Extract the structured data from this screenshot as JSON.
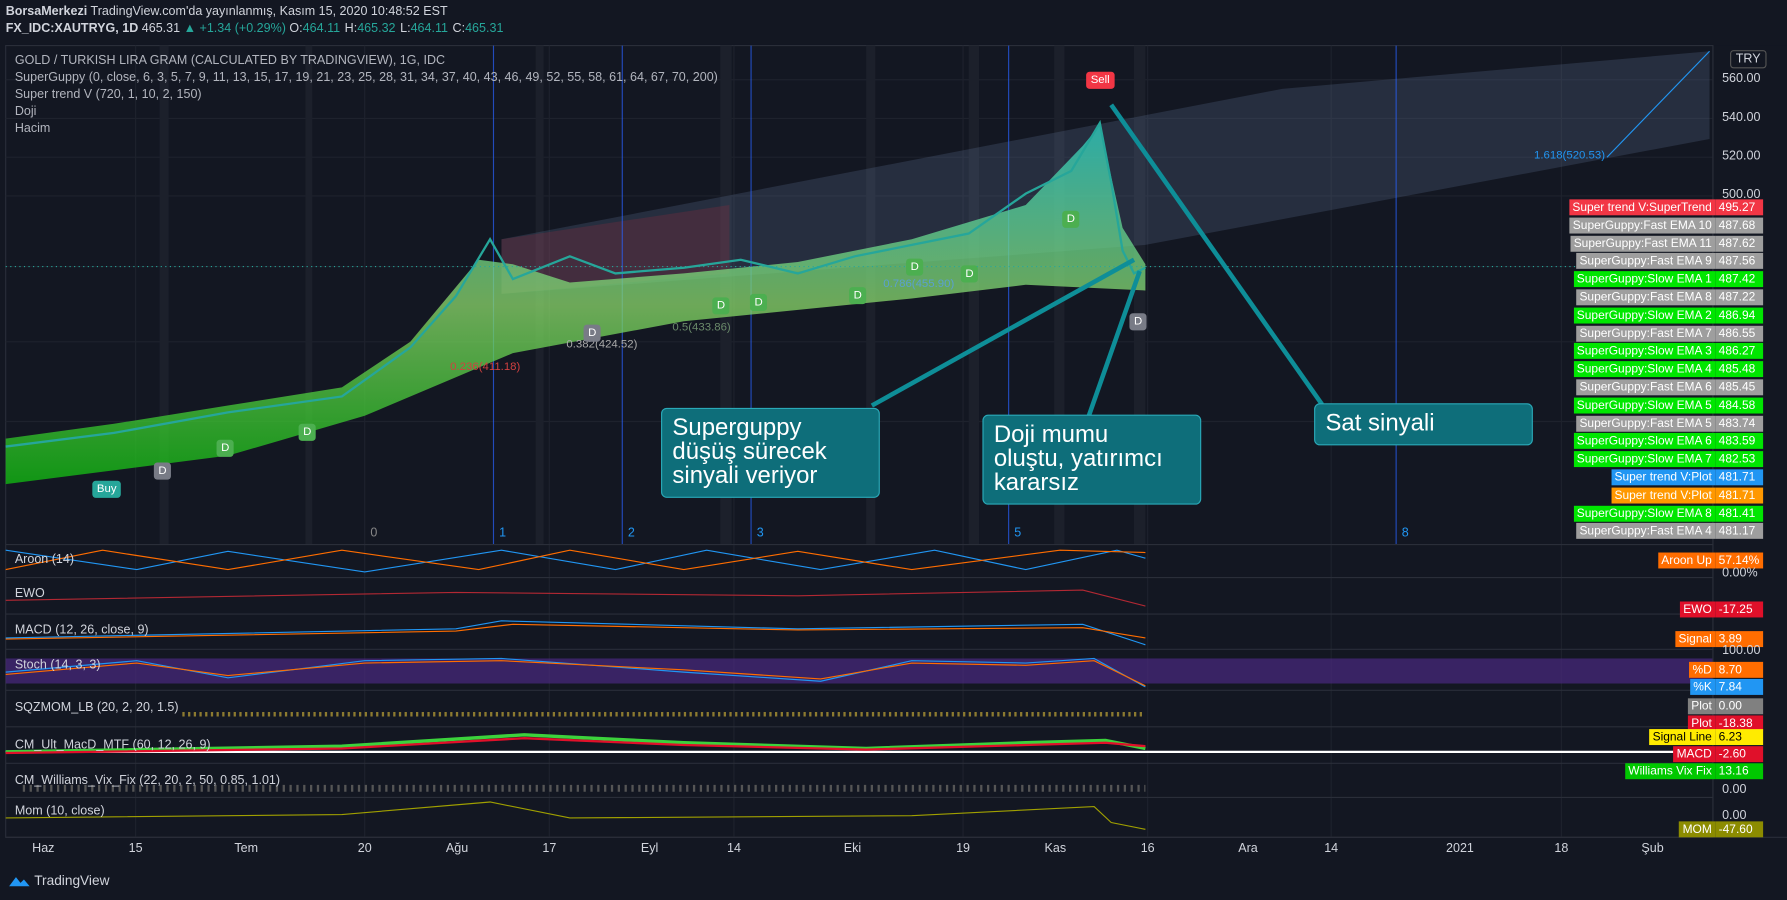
{
  "header": {
    "publisher": "BorsaMerkezi",
    "published": "TradingView.com'da yayınlanmış, Kasım 15, 2020 10:48:52 EST",
    "symbol": "FX_IDC:XAUTRYG, 1D",
    "last": "465.31",
    "change": "▲ +1.34 (+0.29%)",
    "ohlc": [
      {
        "label": "O:",
        "value": "464.11"
      },
      {
        "label": "H:",
        "value": "465.32"
      },
      {
        "label": "L:",
        "value": "464.11"
      },
      {
        "label": "C:",
        "value": "465.31"
      }
    ]
  },
  "main": {
    "title": "GOLD / TURKISH LIRA GRAM (CALCULATED BY TRADINGVIEW), 1G, IDC",
    "studies": [
      "SuperGuppy (0, close, 6, 3, 5, 7, 9, 11, 13, 15, 17, 19, 21, 23, 25, 28, 31, 34, 37, 40, 43, 46, 49, 52, 55, 58, 61, 64, 67, 70, 200)",
      "Super trend V (720, 1, 10, 2, 150)",
      "Doji",
      "Hacim"
    ]
  },
  "price_axis": {
    "currency": "TRY",
    "labels": [
      "560.00",
      "540.00",
      "520.00",
      "500.00"
    ]
  },
  "badges": [
    {
      "label": "Super trend V:SuperTrend",
      "value": "495.27",
      "color": "#f23645"
    },
    {
      "label": "SuperGuppy:Fast EMA 10",
      "value": "487.68",
      "color": "#9e9e9e"
    },
    {
      "label": "SuperGuppy:Fast EMA 11",
      "value": "487.62",
      "color": "#9e9e9e"
    },
    {
      "label": "SuperGuppy:Fast EMA 9",
      "value": "487.56",
      "color": "#9e9e9e"
    },
    {
      "label": "SuperGuppy:Slow EMA 1",
      "value": "487.42",
      "color": "#00e600"
    },
    {
      "label": "SuperGuppy:Fast EMA 8",
      "value": "487.22",
      "color": "#9e9e9e"
    },
    {
      "label": "SuperGuppy:Slow EMA 2",
      "value": "486.94",
      "color": "#00e600"
    },
    {
      "label": "SuperGuppy:Fast EMA 7",
      "value": "486.55",
      "color": "#9e9e9e"
    },
    {
      "label": "SuperGuppy:Slow EMA 3",
      "value": "486.27",
      "color": "#00e600"
    },
    {
      "label": "SuperGuppy:Slow EMA 4",
      "value": "485.48",
      "color": "#00e600"
    },
    {
      "label": "SuperGuppy:Fast EMA 6",
      "value": "485.45",
      "color": "#9e9e9e"
    },
    {
      "label": "SuperGuppy:Slow EMA 5",
      "value": "484.58",
      "color": "#00e600"
    },
    {
      "label": "SuperGuppy:Fast EMA 5",
      "value": "483.74",
      "color": "#9e9e9e"
    },
    {
      "label": "SuperGuppy:Slow EMA 6",
      "value": "483.59",
      "color": "#00e600"
    },
    {
      "label": "SuperGuppy:Slow EMA 7",
      "value": "482.53",
      "color": "#00e600"
    },
    {
      "label": "Super trend V:Plot",
      "value": "481.71",
      "color": "#2196f3"
    },
    {
      "label": "Super trend V:Plot",
      "value": "481.71",
      "color": "#ff9800"
    },
    {
      "label": "SuperGuppy:Slow EMA 8",
      "value": "481.41",
      "color": "#00e600"
    },
    {
      "label": "SuperGuppy:Fast EMA 4",
      "value": "481.17",
      "color": "#9e9e9e"
    }
  ],
  "panes": [
    {
      "title": "Aroon (14)",
      "badges": [
        {
          "label": "Aroon Up",
          "value": "57.14%",
          "color": "#ff6d00"
        }
      ],
      "axis_labels": [
        "0.00%"
      ]
    },
    {
      "title": "EWO",
      "badges": [
        {
          "label": "EWO",
          "value": "-17.25",
          "color": "#e0102a"
        }
      ],
      "axis_labels": []
    },
    {
      "title": "MACD (12, 26, close, 9)",
      "badges": [
        {
          "label": "Signal",
          "value": "3.89",
          "color": "#ff6d00"
        }
      ],
      "axis_labels": [
        "100.00"
      ]
    },
    {
      "title": "Stoch (14, 3, 3)",
      "badges": [
        {
          "label": "%D",
          "value": "8.70",
          "color": "#ff6d00"
        },
        {
          "label": "%K",
          "value": "7.84",
          "color": "#2196f3"
        }
      ],
      "axis_labels": []
    },
    {
      "title": "SQZMOM_LB (20, 2, 20, 1.5)",
      "badges": [
        {
          "label": "Plot",
          "value": "0.00",
          "color": "#808080"
        },
        {
          "label": "Plot",
          "value": "-18.38",
          "color": "#e0102a"
        }
      ],
      "axis_labels": []
    },
    {
      "title": "CM_Ult_MacD_MTF (60, 12, 26, 9)",
      "badges": [
        {
          "label": "Signal Line",
          "value": "6.23",
          "color": "#ffeb00"
        },
        {
          "label": "MACD",
          "value": "-2.60",
          "color": "#e0102a"
        }
      ],
      "axis_labels": []
    },
    {
      "title": "CM_Williams_Vix_Fix (22, 20, 2, 50, 0.85, 1.01)",
      "badges": [
        {
          "label": "Williams Vix Fix",
          "value": "13.16",
          "color": "#00c800"
        }
      ],
      "axis_labels": [
        "0.00"
      ]
    },
    {
      "title": "Mom (10, close)",
      "badges": [
        {
          "label": "MOM",
          "value": "-47.60",
          "color": "#8c8c00"
        }
      ],
      "axis_labels": [
        "0.00"
      ]
    }
  ],
  "x_axis": [
    "Haz",
    "15",
    "Tem",
    "20",
    "Ağu",
    "17",
    "Eyl",
    "14",
    "Eki",
    "19",
    "Kas",
    "16",
    "Ara",
    "14",
    "2021",
    "18",
    "Şub"
  ],
  "waves": [
    "0",
    "1",
    "2",
    "3",
    "5",
    "8"
  ],
  "fib_labels": [
    "1.618(520.53)",
    "0.786(455.90)",
    "0.5(433.86)",
    "0.382(424.52)",
    "0.236(411.18)"
  ],
  "signals": {
    "sell": "Sell",
    "buy": "Buy",
    "doji": "D"
  },
  "annotations": [
    {
      "lines": [
        "Superguppy",
        "düşüş sürecek",
        "sinyali veriyor"
      ]
    },
    {
      "lines": [
        "Doji mumu",
        "oluştu, yatırımcı",
        "kararsız"
      ]
    },
    {
      "lines": [
        "Sat sinyali"
      ]
    }
  ],
  "footer": "TradingView"
}
